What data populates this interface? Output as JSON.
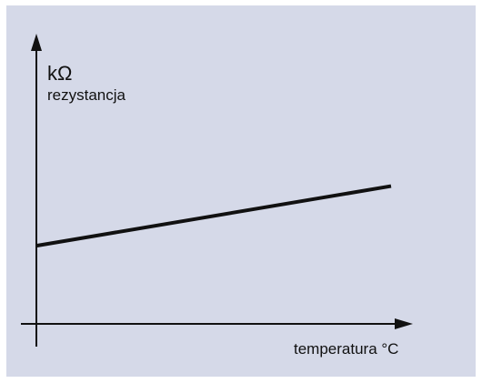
{
  "chart_data": {
    "type": "line",
    "title": "",
    "y_unit": "kΩ",
    "ylabel": "rezystancja",
    "xlabel": "temperatura °C",
    "grid": false,
    "xlim": [
      0,
      10
    ],
    "ylim": [
      0,
      10
    ],
    "series": [
      {
        "x": [
          0,
          10
        ],
        "y": [
          3.8,
          6.7
        ]
      }
    ]
  },
  "colors": {
    "background": "#d5d9e8",
    "axis": "#111111",
    "line": "#111111"
  }
}
